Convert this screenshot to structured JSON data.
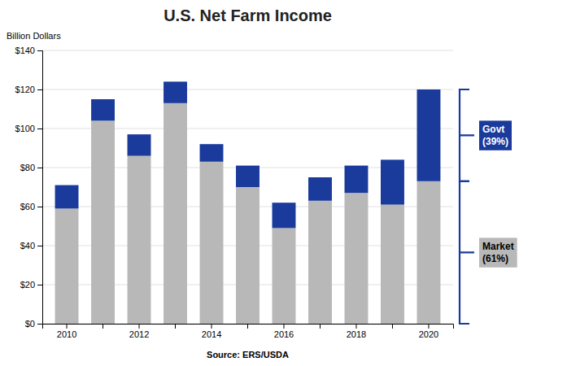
{
  "chart_data": {
    "type": "bar",
    "title": "U.S. Net Farm Income",
    "y_label": "Billion Dollars",
    "source": "Source:  ERS/USDA",
    "stacked": true,
    "grid": true,
    "categories": [
      "2010",
      null,
      "2012",
      null,
      "2014",
      null,
      "2016",
      null,
      "2018",
      null,
      "2020"
    ],
    "series": [
      {
        "color": "#b8b8b8",
        "values": [
          59,
          104,
          86,
          113,
          83,
          70,
          49,
          63,
          67,
          61,
          73
        ]
      },
      {
        "color": "#1a3a9c",
        "values": [
          12,
          11,
          11,
          11,
          9,
          11,
          13,
          12,
          14,
          23,
          47
        ]
      }
    ],
    "ylim": [
      0,
      140
    ],
    "yticks": [
      {
        "value": 0,
        "label": "$0"
      },
      {
        "value": 20,
        "label": "$20"
      },
      {
        "value": 40,
        "label": "$40"
      },
      {
        "value": 60,
        "label": "$60"
      },
      {
        "value": 80,
        "label": "$80"
      },
      {
        "value": 100,
        "label": "$100"
      },
      {
        "value": 120,
        "label": "$120"
      },
      {
        "value": 140,
        "label": "$140"
      }
    ],
    "annotations": [
      {
        "text": "Market\n(61%)",
        "color": "#b8b8b8",
        "text_color": "#000000",
        "bracket_color": "#1a3a9c"
      },
      {
        "text": "Govt\n(39%)",
        "color": "#1a3a9c",
        "text_color": "#ffffff",
        "bracket_color": "#1a3a9c"
      }
    ]
  }
}
